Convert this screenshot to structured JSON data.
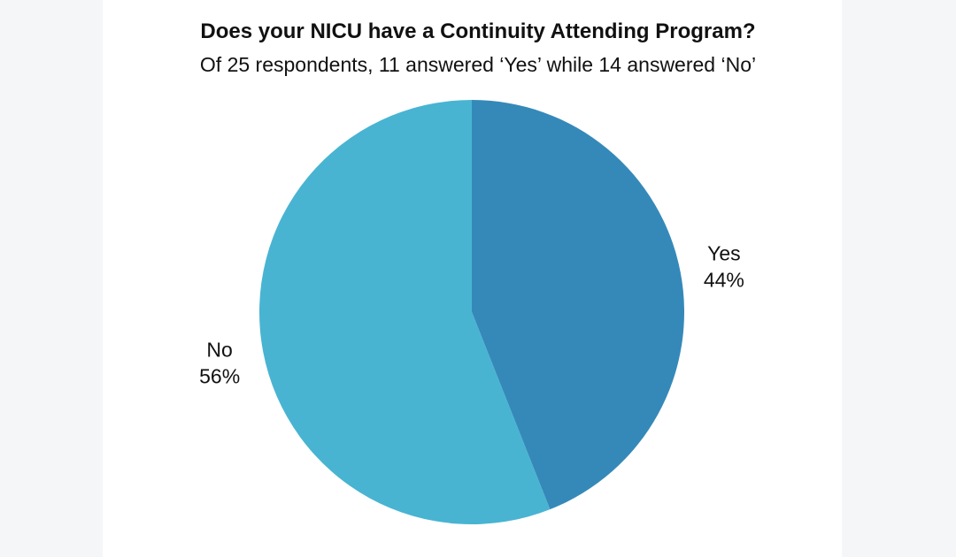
{
  "chart_data": {
    "type": "pie",
    "title": "Does your NICU have a Continuity Attending Program?",
    "subtitle": "Of 25 respondents, 11 answered ‘Yes’ while 14 answered ‘No’",
    "slices": [
      {
        "label": "Yes",
        "value": 44,
        "percent_label": "44%",
        "color": "#3589b9"
      },
      {
        "label": "No",
        "value": 56,
        "percent_label": "56%",
        "color": "#48b4d2"
      }
    ]
  }
}
